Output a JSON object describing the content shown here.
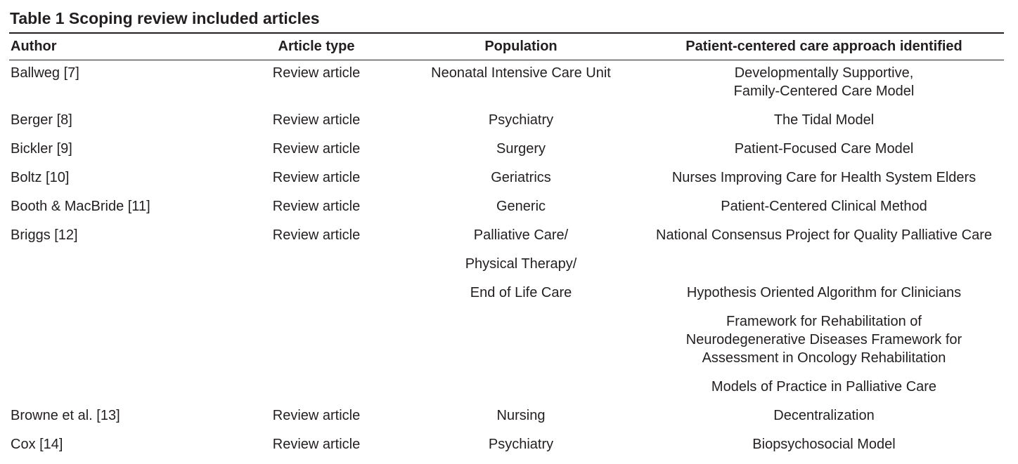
{
  "title": "Table 1 Scoping review included articles",
  "headers": [
    "Author",
    "Article type",
    "Population",
    "Patient-centered care approach identified"
  ],
  "rows": [
    [
      "Ballweg [7]",
      "Review article",
      "Neonatal Intensive Care Unit",
      "Developmentally Supportive,\nFamily-Centered Care Model"
    ],
    [
      "Berger [8]",
      "Review article",
      "Psychiatry",
      "The Tidal Model"
    ],
    [
      "Bickler [9]",
      "Review article",
      "Surgery",
      "Patient-Focused Care Model"
    ],
    [
      "Boltz [10]",
      "Review article",
      "Geriatrics",
      "Nurses Improving Care for Health System Elders"
    ],
    [
      "Booth & MacBride [11]",
      "Review article",
      "Generic",
      "Patient-Centered Clinical Method"
    ],
    [
      "Briggs [12]",
      "Review article",
      "Palliative Care/",
      "National Consensus Project for Quality Palliative Care"
    ],
    [
      "",
      "",
      "Physical Therapy/",
      ""
    ],
    [
      "",
      "",
      "End of Life Care",
      "Hypothesis Oriented Algorithm for Clinicians"
    ],
    [
      "",
      "",
      "",
      "Framework for Rehabilitation of\nNeurodegenerative Diseases Framework for\nAssessment in Oncology Rehabilitation"
    ],
    [
      "",
      "",
      "",
      "Models of Practice in Palliative Care"
    ],
    [
      "Browne et al. [13]",
      "Review article",
      "Nursing",
      "Decentralization"
    ],
    [
      "Cox [14]",
      "Review article",
      "Psychiatry",
      "Biopsychosocial Model"
    ]
  ]
}
